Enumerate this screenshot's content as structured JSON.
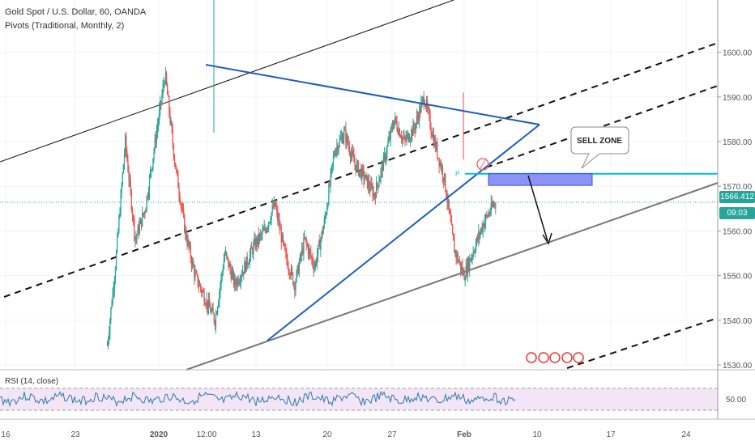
{
  "header": {
    "symbol_title": "Gold Spot / U.S. Dollar, 60, OANDA",
    "indicator": "Pivots (Traditional, Monthly, 2)",
    "rsi_label": "RSI (14, close)"
  },
  "price_label": {
    "value": "1566.412",
    "timer": "09:03",
    "color": "#26a69a"
  },
  "annotation": {
    "sell_zone": "SELL ZONE",
    "pivot_marker": "P"
  },
  "rsi_axis_label": "50.00",
  "colors": {
    "up": "#26a69a",
    "down": "#ef5350",
    "trendline": "#1e5bc6",
    "channel": "#777777",
    "cyan": "#00bcd4",
    "zone": "#8c93f7",
    "rsi": "#2a7ab0"
  },
  "chart_data": {
    "type": "candlestick",
    "title": "Gold Spot / U.S. Dollar, 60, OANDA",
    "ylim": [
      1528,
      1612
    ],
    "y_ticks": [
      1530,
      1540,
      1550,
      1560,
      1570,
      1580,
      1590,
      1600
    ],
    "x_tick_labels": [
      "16",
      "23",
      "2020",
      "12:00",
      "13",
      "20",
      "27",
      "Feb",
      "10",
      "17",
      "24"
    ],
    "current_price": 1566.412,
    "price_path": [
      [
        16,
        1528
      ],
      [
        24,
        1528
      ],
      [
        26,
        1530
      ],
      [
        27,
        1552
      ],
      [
        28,
        1580
      ],
      [
        29,
        1558
      ],
      [
        30,
        1565
      ],
      [
        31,
        1580
      ],
      [
        32,
        1595
      ],
      [
        33,
        1575
      ],
      [
        34,
        1560
      ],
      [
        35,
        1550
      ],
      [
        36,
        1545
      ],
      [
        37,
        1540
      ],
      [
        38,
        1555
      ],
      [
        39,
        1548
      ],
      [
        40,
        1552
      ],
      [
        41,
        1557
      ],
      [
        42,
        1560
      ],
      [
        43,
        1566
      ],
      [
        44,
        1555
      ],
      [
        45,
        1548
      ],
      [
        46,
        1558
      ],
      [
        47,
        1552
      ],
      [
        48,
        1562
      ],
      [
        49,
        1578
      ],
      [
        50,
        1582
      ],
      [
        51,
        1575
      ],
      [
        52,
        1572
      ],
      [
        53,
        1568
      ],
      [
        54,
        1576
      ],
      [
        55,
        1585
      ],
      [
        56,
        1580
      ],
      [
        57,
        1583
      ],
      [
        58,
        1590
      ],
      [
        59,
        1580
      ],
      [
        60,
        1572
      ],
      [
        61,
        1556
      ],
      [
        62,
        1550
      ],
      [
        63,
        1556
      ],
      [
        64,
        1562
      ],
      [
        65,
        1566
      ]
    ],
    "pivots": {
      "P": 1572.8
    },
    "sell_zone": {
      "from": 1570.2,
      "to": 1572.8
    },
    "rsi": {
      "label": "RSI (14, close)",
      "level": 50.0
    }
  }
}
